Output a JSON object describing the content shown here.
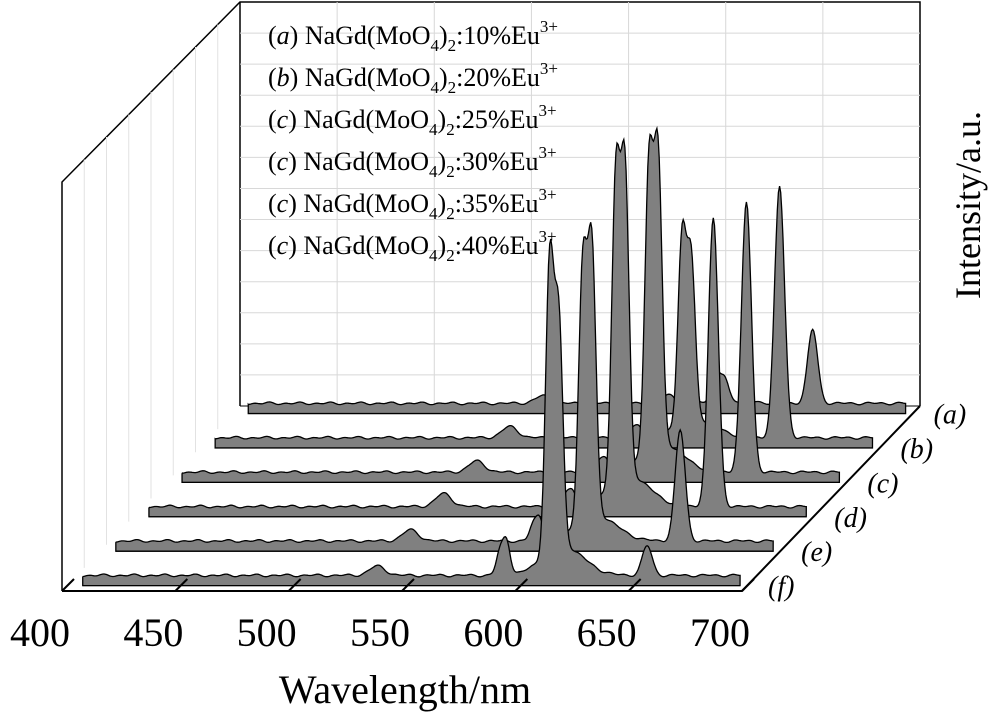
{
  "chart_data": {
    "type": "line",
    "style": "3d-waterfall",
    "xlabel": "Wavelength/nm",
    "ylabel": "Intensity/a.u.",
    "xlim": [
      400,
      700
    ],
    "x_ticks": [
      "400",
      "450",
      "500",
      "550",
      "600",
      "650",
      "700"
    ],
    "depth_labels": [
      "(a)",
      "(b)",
      "(c)",
      "(d)",
      "(e)",
      "(f)"
    ],
    "legend": [
      {
        "tag": "a",
        "formula": "NaGd(MoO",
        "sub": "4",
        "sub2": "2",
        "rest": ":10%Eu",
        "sup": "3+"
      },
      {
        "tag": "b",
        "formula": "NaGd(MoO",
        "sub": "4",
        "sub2": "2",
        "rest": ":20%Eu",
        "sup": "3+"
      },
      {
        "tag": "c",
        "formula": "NaGd(MoO",
        "sub": "4",
        "sub2": "2",
        "rest": ":25%Eu",
        "sup": "3+"
      },
      {
        "tag": "c",
        "formula": "NaGd(MoO",
        "sub": "4",
        "sub2": "2",
        "rest": ":30%Eu",
        "sup": "3+"
      },
      {
        "tag": "c",
        "formula": "NaGd(MoO",
        "sub": "4",
        "sub2": "2",
        "rest": ":35%Eu",
        "sup": "3+"
      },
      {
        "tag": "c",
        "formula": "NaGd(MoO",
        "sub": "4",
        "sub2": "2",
        "rest": ":40%Eu",
        "sup": "3+"
      }
    ],
    "fill_color": "#808080",
    "peaks_nm": [
      536,
      590,
      593,
      612,
      616,
      655
    ],
    "series": [
      {
        "name": "(a)",
        "peaks": [
          0.02,
          0.015,
          0.02,
          0.08,
          0.06,
          0.2
        ]
      },
      {
        "name": "(b)",
        "peaks": [
          0.03,
          0.02,
          0.03,
          0.5,
          0.43,
          0.68
        ]
      },
      {
        "name": "(c)",
        "peaks": [
          0.03,
          0.025,
          0.035,
          0.76,
          0.77,
          0.73
        ]
      },
      {
        "name": "(d)",
        "peaks": [
          0.035,
          0.03,
          0.04,
          0.82,
          0.82,
          0.78
        ]
      },
      {
        "name": "(e)",
        "peaks": [
          0.03,
          0.04,
          0.06,
          0.68,
          0.72,
          0.3
        ]
      },
      {
        "name": "(f)",
        "peaks": [
          0.025,
          0.06,
          0.09,
          0.78,
          0.61,
          0.08
        ]
      }
    ]
  }
}
